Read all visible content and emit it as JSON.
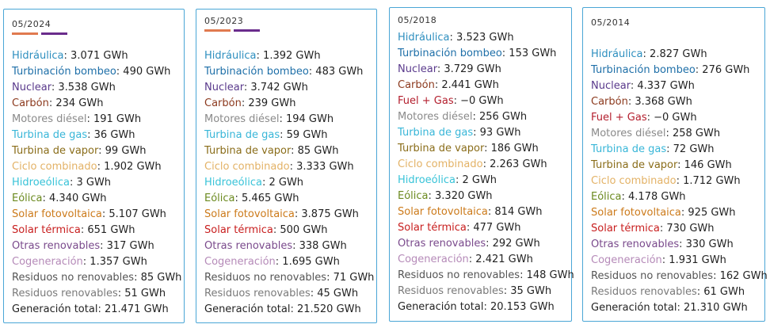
{
  "colors": {
    "Hidráulica": "#2e8fbf",
    "Turbinación bombeo": "#1e6fa8",
    "Nuclear": "#5a3a8c",
    "Carbón": "#8c3a1e",
    "Fuel + Gas": "#b31e2d",
    "Motores diésel": "#8a8a8a",
    "Turbina de gas": "#38b6d8",
    "Turbina de vapor": "#8a6d1a",
    "Ciclo combinado": "#e3b266",
    "Hidroeólica": "#38c3d8",
    "Eólica": "#6b8a1f",
    "Solar fotovoltaica": "#cc7a1a",
    "Solar térmica": "#c81e1e",
    "Otras renovables": "#7a4a8c",
    "Cogeneración": "#b58ab8",
    "Residuos no renovables": "#555555",
    "Residuos renovables": "#7a7a7a",
    "Generación total": "#222222"
  },
  "swatch_colors": [
    "#e07a4f",
    "#6a2c8c"
  ],
  "cards": [
    {
      "period": "05/2024",
      "show_swatches": true,
      "rows": [
        {
          "label": "Hidráulica",
          "value": "3.071 GWh"
        },
        {
          "label": "Turbinación bombeo",
          "value": "490 GWh"
        },
        {
          "label": "Nuclear",
          "value": "3.538 GWh"
        },
        {
          "label": "Carbón",
          "value": "234 GWh"
        },
        {
          "label": "Motores diésel",
          "value": "191 GWh"
        },
        {
          "label": "Turbina de gas",
          "value": "36 GWh"
        },
        {
          "label": "Turbina de vapor",
          "value": "99 GWh"
        },
        {
          "label": "Ciclo combinado",
          "value": "1.902 GWh"
        },
        {
          "label": "Hidroeólica",
          "value": "3 GWh"
        },
        {
          "label": "Eólica",
          "value": "4.340 GWh"
        },
        {
          "label": "Solar fotovoltaica",
          "value": "5.107 GWh"
        },
        {
          "label": "Solar térmica",
          "value": "651 GWh"
        },
        {
          "label": "Otras renovables",
          "value": "317 GWh"
        },
        {
          "label": "Cogeneración",
          "value": "1.357 GWh"
        },
        {
          "label": "Residuos no renovables",
          "value": "85 GWh"
        },
        {
          "label": "Residuos renovables",
          "value": "51 GWh"
        },
        {
          "label": "Generación total",
          "value": "21.471 GWh"
        }
      ]
    },
    {
      "period": "05/2023",
      "show_swatches": true,
      "rows": [
        {
          "label": "Hidráulica",
          "value": "1.392 GWh"
        },
        {
          "label": "Turbinación bombeo",
          "value": "483 GWh"
        },
        {
          "label": "Nuclear",
          "value": "3.742 GWh"
        },
        {
          "label": "Carbón",
          "value": "239 GWh"
        },
        {
          "label": "Motores diésel",
          "value": "194 GWh"
        },
        {
          "label": "Turbina de gas",
          "value": "59 GWh"
        },
        {
          "label": "Turbina de vapor",
          "value": "85 GWh"
        },
        {
          "label": "Ciclo combinado",
          "value": "3.333 GWh"
        },
        {
          "label": "Hidroeólica",
          "value": "2 GWh"
        },
        {
          "label": "Eólica",
          "value": "5.465 GWh"
        },
        {
          "label": "Solar fotovoltaica",
          "value": "3.875 GWh"
        },
        {
          "label": "Solar térmica",
          "value": "500 GWh"
        },
        {
          "label": "Otras renovables",
          "value": "338 GWh"
        },
        {
          "label": "Cogeneración",
          "value": "1.695 GWh"
        },
        {
          "label": "Residuos no renovables",
          "value": "71 GWh"
        },
        {
          "label": "Residuos renovables",
          "value": "45 GWh"
        },
        {
          "label": "Generación total",
          "value": "21.520 GWh"
        }
      ]
    },
    {
      "period": "05/2018",
      "show_swatches": false,
      "rows": [
        {
          "label": "Hidráulica",
          "value": "3.523 GWh"
        },
        {
          "label": "Turbinación bombeo",
          "value": "153 GWh"
        },
        {
          "label": "Nuclear",
          "value": "3.729 GWh"
        },
        {
          "label": "Carbón",
          "value": "2.441 GWh"
        },
        {
          "label": "Fuel + Gas",
          "value": "−0 GWh"
        },
        {
          "label": "Motores diésel",
          "value": "256 GWh"
        },
        {
          "label": "Turbina de gas",
          "value": "93 GWh"
        },
        {
          "label": "Turbina de vapor",
          "value": "186 GWh"
        },
        {
          "label": "Ciclo combinado",
          "value": "2.263 GWh"
        },
        {
          "label": "Hidroeólica",
          "value": "2 GWh"
        },
        {
          "label": "Eólica",
          "value": "3.320 GWh"
        },
        {
          "label": "Solar fotovoltaica",
          "value": "814 GWh"
        },
        {
          "label": "Solar térmica",
          "value": "477 GWh"
        },
        {
          "label": "Otras renovables",
          "value": "292 GWh"
        },
        {
          "label": "Cogeneración",
          "value": "2.421 GWh"
        },
        {
          "label": "Residuos no renovables",
          "value": "148 GWh"
        },
        {
          "label": "Residuos renovables",
          "value": "35 GWh"
        },
        {
          "label": "Generación total",
          "value": "20.153 GWh"
        }
      ]
    },
    {
      "period": "05/2014",
      "show_swatches": false,
      "rows": [
        {
          "label": "Hidráulica",
          "value": "2.827 GWh"
        },
        {
          "label": "Turbinación bombeo",
          "value": "276 GWh"
        },
        {
          "label": "Nuclear",
          "value": "4.337 GWh"
        },
        {
          "label": "Carbón",
          "value": "3.368 GWh"
        },
        {
          "label": "Fuel + Gas",
          "value": "−0 GWh"
        },
        {
          "label": "Motores diésel",
          "value": "258 GWh"
        },
        {
          "label": "Turbina de gas",
          "value": "72 GWh"
        },
        {
          "label": "Turbina de vapor",
          "value": "146 GWh"
        },
        {
          "label": "Ciclo combinado",
          "value": "1.712 GWh"
        },
        {
          "label": "Eólica",
          "value": "4.178 GWh"
        },
        {
          "label": "Solar fotovoltaica",
          "value": "925 GWh"
        },
        {
          "label": "Solar térmica",
          "value": "730 GWh"
        },
        {
          "label": "Otras renovables",
          "value": "330 GWh"
        },
        {
          "label": "Cogeneración",
          "value": "1.931 GWh"
        },
        {
          "label": "Residuos no renovables",
          "value": "162 GWh"
        },
        {
          "label": "Residuos renovables",
          "value": "61 GWh"
        },
        {
          "label": "Generación total",
          "value": "21.310 GWh"
        }
      ]
    }
  ]
}
